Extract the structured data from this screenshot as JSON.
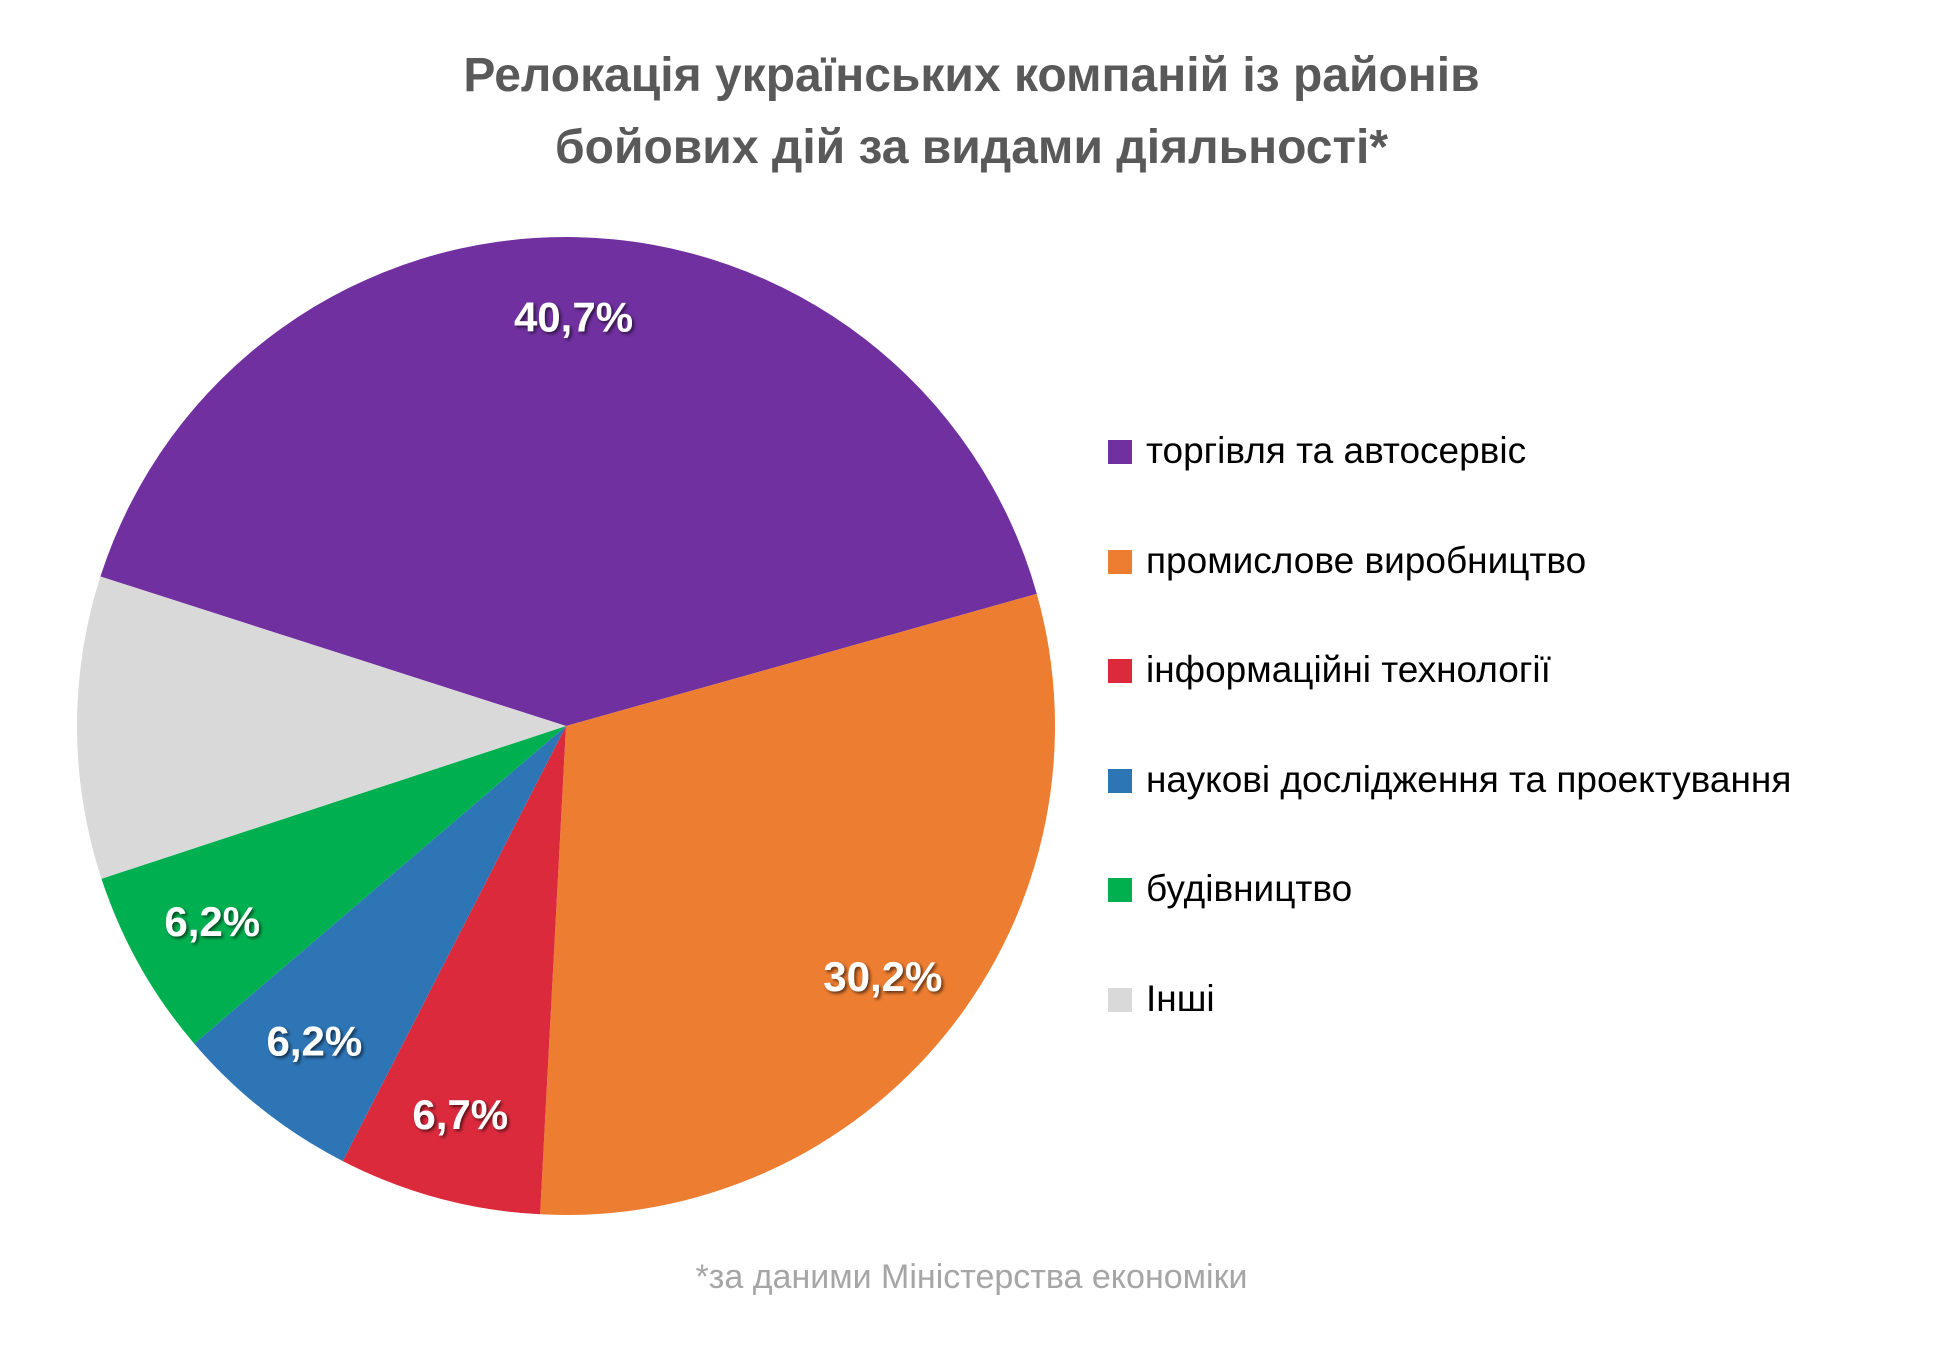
{
  "chart_data": {
    "type": "pie",
    "title": [
      "Релокація українських компаній із районів",
      "бойових дій за видами діяльності*"
    ],
    "categories": [
      "торгівля та автосервіс",
      "промислове виробництво",
      "інформаційні технології",
      "наукові дослідження та проектування",
      "будівництво",
      "Інші"
    ],
    "values": [
      40.7,
      30.2,
      6.7,
      6.2,
      6.2,
      10.0
    ],
    "data_labels": [
      "40,7%",
      "30,2%",
      "6,7%",
      "6,2%",
      "6,2%",
      ""
    ],
    "colors": [
      "#7030a0",
      "#ed7d31",
      "#dc2a3d",
      "#2e75b6",
      "#00b050",
      "#d9d9d9"
    ],
    "legend_position": "right",
    "footnote": "*за даними Міністерства економіки"
  }
}
